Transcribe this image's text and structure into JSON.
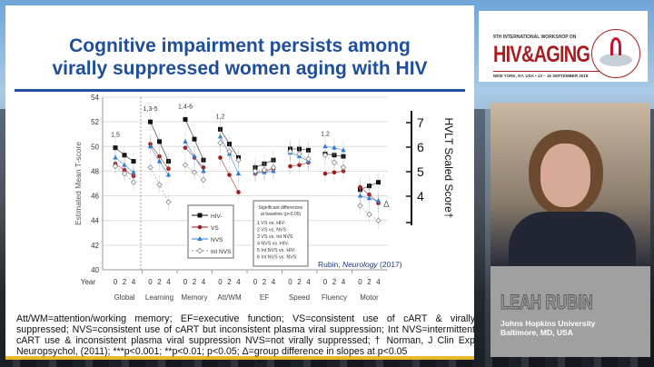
{
  "slide": {
    "title_line1": "Cognitive impairment persists among",
    "title_line2": "virally suppressed women aging with HIV",
    "footnote": "Att/WM=attention/working memory; EF=executive function; VS=consistent use of cART & virally suppressed; NVS=consistent use of cART but inconsistent plasma viral suppression; Int NVS=intermittent cART use & inconsistent plasma viral suppression NVS=not virally suppressed; † Norman, J Clin Exp Neuropsychol, (2011); ***p<0.001; **p<0.01; p<0.05; Δ=group difference in slopes at p<0.05"
  },
  "logo": {
    "small": "9TH INTERNATIONAL WORKSHOP ON",
    "big": "HIV&AGING",
    "sub": "NEW YORK, NY, USA • 13 – 16 SEPTEMBER 2018"
  },
  "speaker": {
    "name": "LEAH RUBIN",
    "affiliation": "Johns Hopkins University",
    "location": "Baltimore, MD, USA"
  },
  "chart_data": {
    "type": "line",
    "ylabel": "Estimated Mean T-score",
    "ylabel_right": "HVLT Scaled Score†",
    "ylim": [
      40,
      54
    ],
    "yticks": [
      40,
      42,
      44,
      46,
      48,
      50,
      52,
      54
    ],
    "yticks_right": [
      "4",
      "5",
      "6",
      "7"
    ],
    "right_lim": [
      3,
      7
    ],
    "xlabel_prefix": "Year",
    "timepoints": [
      "0",
      "2",
      "4"
    ],
    "categories": [
      "Global",
      "Learning",
      "Memory",
      "Att/WM",
      "EF",
      "Speed",
      "Fluency",
      "Motor"
    ],
    "annotations": [
      "1,5",
      "1,3-5",
      "1,4-6",
      "1,2",
      "",
      "",
      "1,2",
      ""
    ],
    "delta_marker": "Δ",
    "citation_author": "Rubin, ",
    "citation_journal": "Neurology",
    "citation_year": " (2017)",
    "series": [
      {
        "name": "HIV-",
        "color": "#111111",
        "marker": "square",
        "values": [
          [
            49.9,
            49.3,
            48.8
          ],
          [
            52.0,
            50.4,
            48.8
          ],
          [
            52.2,
            50.6,
            48.9
          ],
          [
            51.4,
            50.2,
            49.1
          ],
          [
            48.3,
            48.6,
            48.9
          ],
          [
            49.8,
            49.8,
            49.7
          ],
          [
            49.4,
            49.3,
            49.2
          ],
          [
            46.5,
            46.8,
            47.1
          ]
        ]
      },
      {
        "name": "VS",
        "color": "#a01818",
        "marker": "circle",
        "values": [
          [
            48.6,
            48.1,
            47.6
          ],
          [
            50.2,
            49.2,
            48.2
          ],
          [
            49.9,
            49.1,
            48.3
          ],
          [
            49.1,
            47.7,
            46.3
          ],
          [
            47.8,
            48.0,
            48.2
          ],
          [
            48.4,
            48.5,
            48.7
          ],
          [
            47.8,
            47.9,
            48.0
          ],
          [
            46.7,
            46.1,
            45.4
          ]
        ]
      },
      {
        "name": "NVS",
        "color": "#2a7bd4",
        "marker": "triangle",
        "values": [
          [
            49.1,
            48.5,
            47.9
          ],
          [
            50.0,
            48.8,
            47.7
          ],
          [
            50.4,
            49.2,
            48.0
          ],
          [
            50.8,
            49.4,
            47.8
          ],
          [
            47.9,
            47.9,
            48.0
          ],
          [
            49.5,
            49.2,
            48.8
          ],
          [
            50.0,
            49.9,
            49.7
          ],
          [
            46.0,
            45.8,
            45.6
          ]
        ]
      },
      {
        "name": "Int NVS",
        "color": "#888888",
        "marker": "diamond",
        "values": [
          [
            48.4,
            47.8,
            47.1
          ],
          [
            48.3,
            46.9,
            45.5
          ],
          [
            48.5,
            47.9,
            47.3
          ],
          [
            50.3,
            49.6,
            48.9
          ],
          [
            48.0,
            48.1,
            48.3
          ],
          [
            49.6,
            49.4,
            49.0
          ],
          [
            49.3,
            48.7,
            48.3
          ],
          [
            45.2,
            44.5,
            44.0
          ]
        ]
      }
    ],
    "sig_box": {
      "title1": "Significant differences",
      "title2": "at baseline (p<0.05)",
      "items": [
        "1   VS vs. HIV-",
        "2   VS vs. NVS",
        "3   VS vs. Int NVS",
        "4   NVS vs. HIV-",
        "5   Int NVS vs. HIV-",
        "6   Int NVS vs. NVS"
      ]
    }
  }
}
